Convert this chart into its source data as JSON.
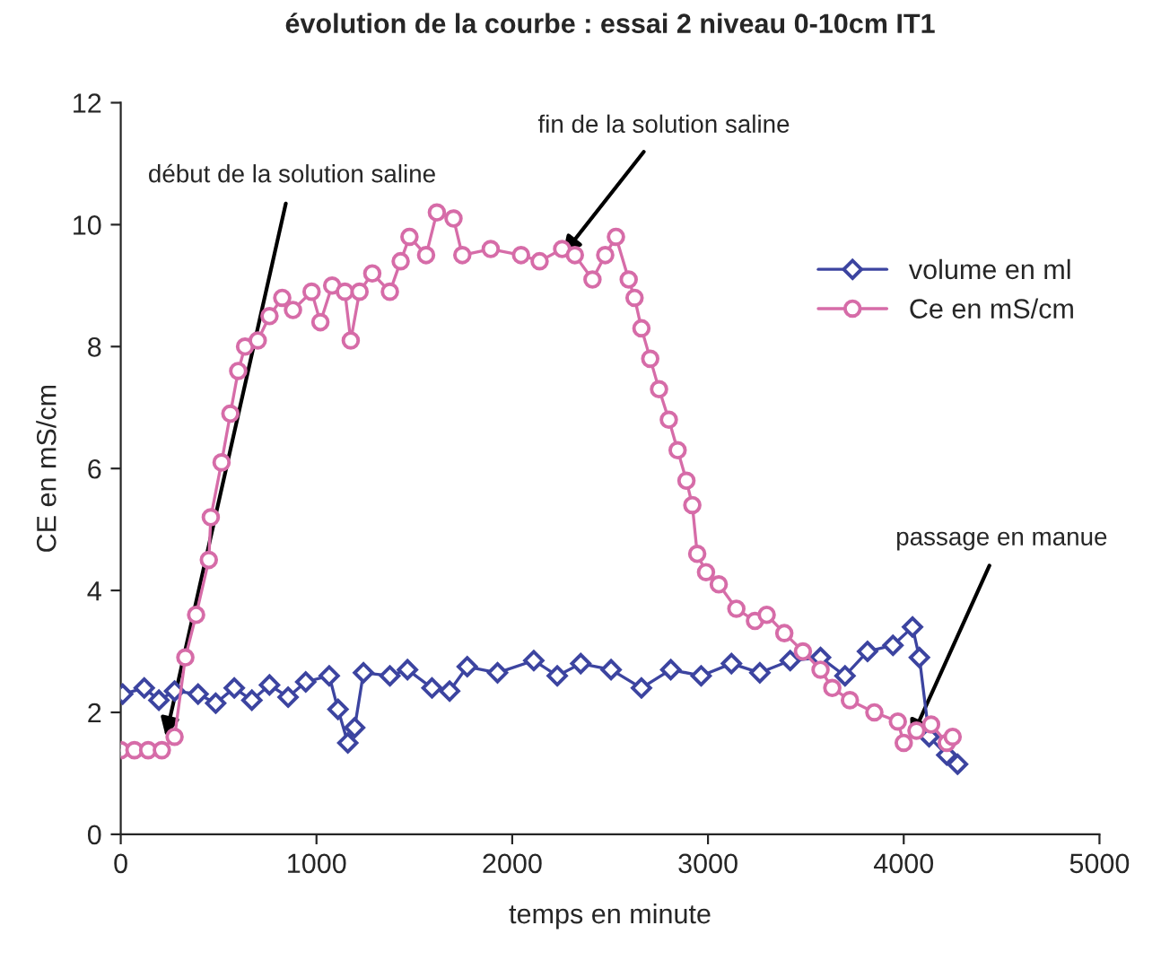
{
  "chart_data": {
    "type": "line",
    "title": "évolution de la courbe : essai 2 niveau 0-10cm IT1",
    "xlabel": "temps en minute",
    "ylabel": "CE en mS/cm",
    "xlim": [
      0,
      5000
    ],
    "xticks": [
      0,
      1000,
      2000,
      3000,
      4000,
      5000
    ],
    "ylim": [
      0,
      12
    ],
    "yticks": [
      0,
      2,
      4,
      6,
      8,
      10,
      12
    ],
    "grid": false,
    "legend": "top right",
    "series": [
      {
        "name": "volume en ml",
        "color": "#3c44a0",
        "marker": "diamond",
        "x": [
          10,
          120,
          195,
          275,
          395,
          485,
          580,
          670,
          760,
          855,
          945,
          1065,
          1110,
          1160,
          1195,
          1240,
          1375,
          1465,
          1590,
          1680,
          1770,
          1925,
          2110,
          2230,
          2350,
          2505,
          2660,
          2810,
          2965,
          3120,
          3265,
          3420,
          3575,
          3700,
          3815,
          3945,
          4045,
          4080,
          4130,
          4220,
          4275
        ],
        "values": [
          2.3,
          2.4,
          2.2,
          2.35,
          2.3,
          2.15,
          2.4,
          2.2,
          2.45,
          2.25,
          2.5,
          2.6,
          2.05,
          1.5,
          1.75,
          2.65,
          2.6,
          2.7,
          2.4,
          2.35,
          2.75,
          2.65,
          2.85,
          2.6,
          2.8,
          2.7,
          2.4,
          2.7,
          2.6,
          2.8,
          2.65,
          2.85,
          2.9,
          2.6,
          3.0,
          3.1,
          3.4,
          2.9,
          1.6,
          1.3,
          1.15
        ]
      },
      {
        "name": "Ce en mS/cm",
        "color": "#d66ca8",
        "marker": "circle",
        "x": [
          0,
          70,
          140,
          210,
          275,
          330,
          385,
          450,
          460,
          515,
          560,
          600,
          635,
          700,
          760,
          825,
          880,
          975,
          1020,
          1080,
          1145,
          1175,
          1220,
          1285,
          1375,
          1430,
          1475,
          1560,
          1615,
          1700,
          1745,
          1890,
          2045,
          2140,
          2255,
          2320,
          2410,
          2475,
          2530,
          2595,
          2625,
          2660,
          2705,
          2750,
          2800,
          2845,
          2890,
          2920,
          2945,
          2990,
          3055,
          3145,
          3240,
          3300,
          3390,
          3485,
          3575,
          3635,
          3725,
          3850,
          3970,
          4000,
          4065,
          4140,
          4220,
          4250
        ],
        "values": [
          1.38,
          1.38,
          1.38,
          1.38,
          1.6,
          2.9,
          3.6,
          4.5,
          5.2,
          6.1,
          6.9,
          7.6,
          8.0,
          8.1,
          8.5,
          8.8,
          8.6,
          8.9,
          8.4,
          9.0,
          8.9,
          8.1,
          8.9,
          9.2,
          8.9,
          9.4,
          9.8,
          9.5,
          10.2,
          10.1,
          9.5,
          9.6,
          9.5,
          9.4,
          9.6,
          9.5,
          9.1,
          9.5,
          9.8,
          9.1,
          8.8,
          8.3,
          7.8,
          7.3,
          6.8,
          6.3,
          5.8,
          5.4,
          4.6,
          4.3,
          4.1,
          3.7,
          3.5,
          3.6,
          3.3,
          3.0,
          2.7,
          2.4,
          2.2,
          2.0,
          1.85,
          1.5,
          1.7,
          1.8,
          1.5,
          1.6
        ]
      }
    ],
    "annotations": [
      {
        "text": "début de la solution saline",
        "x": 230,
        "y": 1.6
      },
      {
        "text": "fin de la solution saline",
        "x": 2257,
        "y": 9.5
      },
      {
        "text": "passage en manue",
        "x": 4037,
        "y": 1.56
      }
    ]
  }
}
